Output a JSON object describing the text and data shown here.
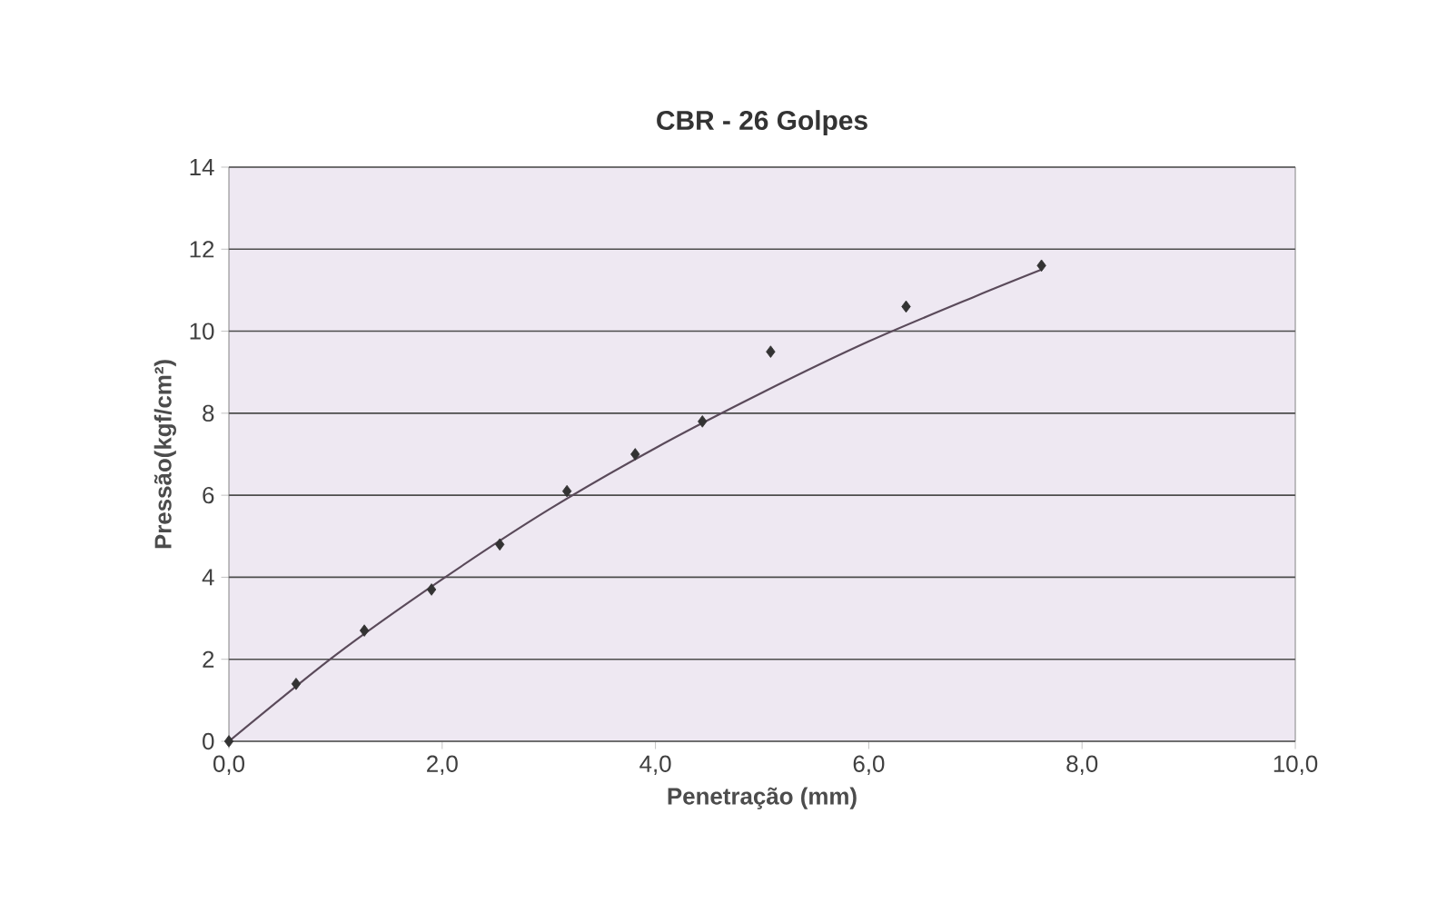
{
  "chart_data": {
    "type": "scatter",
    "title": "CBR - 26 Golpes",
    "xlabel": "Penetração (mm)",
    "ylabel": "Pressão(kgf/cm²)",
    "xlim": [
      0,
      10
    ],
    "xticks": [
      {
        "value": 0,
        "label": "0,0"
      },
      {
        "value": 2,
        "label": "2,0"
      },
      {
        "value": 4,
        "label": "4,0"
      },
      {
        "value": 6,
        "label": "6,0"
      },
      {
        "value": 8,
        "label": "8,0"
      },
      {
        "value": 10,
        "label": "10,0"
      }
    ],
    "ylim": [
      0,
      14
    ],
    "yticks": [
      0,
      2,
      4,
      6,
      8,
      10,
      12,
      14
    ],
    "grid": "y",
    "series": [
      {
        "marker": "diamond",
        "color": "#333333",
        "x": [
          0,
          0.63,
          1.27,
          1.9,
          2.54,
          3.17,
          3.81,
          4.44,
          5.08,
          6.35,
          7.62
        ],
        "values": [
          0,
          1.4,
          2.7,
          3.7,
          4.8,
          6.1,
          7.0,
          7.8,
          9.5,
          10.6,
          11.6
        ]
      },
      {
        "type": "line",
        "color": "#5a4a5a",
        "x": [
          0,
          1,
          2,
          3,
          4,
          5,
          6,
          7,
          7.62
        ],
        "values": [
          0,
          2.1,
          3.95,
          5.65,
          7.15,
          8.5,
          9.75,
          10.85,
          11.5
        ]
      }
    ]
  }
}
